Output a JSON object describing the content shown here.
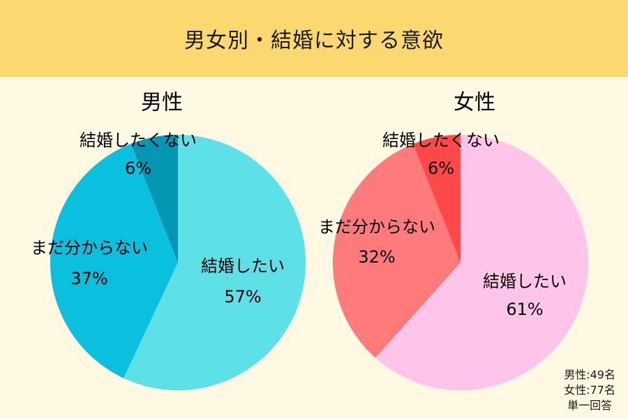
{
  "header": {
    "title": "男女別・結婚に対する意欲"
  },
  "chart_data": [
    {
      "type": "pie",
      "title": "男性",
      "slices": [
        {
          "label": "結婚したい",
          "value": 57,
          "value_label": "57%",
          "color": "#5de0e6"
        },
        {
          "label": "まだ分からない",
          "value": 37,
          "value_label": "37%",
          "color": "#0bbfde"
        },
        {
          "label": "結婚したくない",
          "value": 6,
          "value_label": "6%",
          "color": "#0397b3"
        }
      ]
    },
    {
      "type": "pie",
      "title": "女性",
      "slices": [
        {
          "label": "結婚したい",
          "value": 61,
          "value_label": "61%",
          "color": "#ffc4e9"
        },
        {
          "label": "まだ分からない",
          "value": 32,
          "value_label": "32%",
          "color": "#ff7b7b"
        },
        {
          "label": "結婚したくない",
          "value": 6,
          "value_label": "6%",
          "color": "#ff4848"
        }
      ]
    }
  ],
  "notes": {
    "male_count": "男性:49名",
    "female_count": "女性:77名",
    "answer_type": "単一回答"
  }
}
